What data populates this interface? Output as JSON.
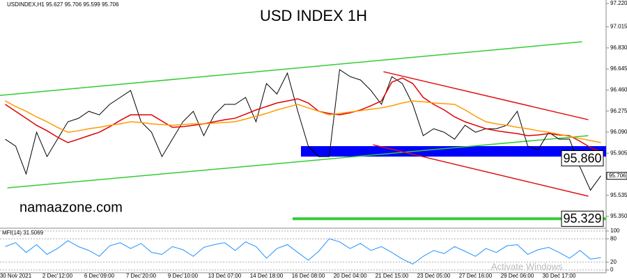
{
  "chart_data": [
    {
      "type": "line",
      "title": "USD INDEX 1H",
      "symbol_info": "USDINDEX,H1  95.627 95.706 95.599 95.706",
      "watermark": "namaazone.com",
      "ylim": [
        95.258,
        97.251
      ],
      "yticks": [
        {
          "value": 97.22,
          "label": "97.220"
        },
        97.015,
        {
          "value": 96.83,
          "label": "96.830"
        },
        96.645,
        {
          "value": 96.46,
          "label": "96.460"
        },
        96.275,
        {
          "value": 96.09,
          "label": "96.090"
        },
        95.905,
        95.535,
        {
          "value": 95.35,
          "label": "95.350"
        }
      ],
      "last_price": 95.706,
      "series": [
        {
          "color": "#000000",
          "values": [
            96.028,
            95.967,
            95.722,
            96.089,
            95.875,
            96.028,
            96.181,
            96.211,
            96.273,
            96.242,
            96.334,
            96.395,
            96.456,
            96.181,
            96.089,
            95.875,
            96.028,
            96.181,
            96.273,
            96.059,
            96.242,
            96.334,
            96.334,
            96.395,
            96.181,
            96.517,
            96.425,
            96.609,
            96.273,
            95.967,
            95.875,
            95.875,
            96.639,
            96.578,
            96.548,
            96.456,
            96.334,
            96.578,
            96.517,
            96.334,
            96.059,
            96.12,
            96.089,
            96.028,
            96.15,
            96.089,
            96.12,
            96.12,
            96.15,
            96.273,
            95.967,
            95.936,
            96.089,
            96.028,
            96.028,
            95.784,
            95.58,
            95.706
          ]
        },
        {
          "color": "#e00000",
          "values": [
            96.334,
            96.273,
            96.212,
            96.15,
            96.102,
            96.046,
            95.998,
            96.028,
            96.059,
            96.089,
            96.138,
            96.193,
            96.242,
            96.242,
            96.242,
            96.187,
            96.132,
            96.138,
            96.15,
            96.163,
            96.181,
            96.199,
            96.212,
            96.248,
            96.285,
            96.315,
            96.346,
            96.364,
            96.383,
            96.346,
            96.273,
            96.254,
            96.242,
            96.26,
            96.285,
            96.322,
            96.364,
            96.529,
            96.566,
            96.517,
            96.395,
            96.334,
            96.285,
            96.224,
            96.181,
            96.15,
            96.12,
            96.102,
            96.089,
            96.077,
            96.059,
            96.065,
            96.077,
            96.065,
            96.059,
            96.01,
            95.955,
            95.918
          ]
        },
        {
          "color": "#ff9900",
          "values": [
            96.364,
            96.315,
            96.273,
            96.224,
            96.181,
            96.132,
            96.089,
            96.102,
            96.12,
            96.132,
            96.15,
            96.163,
            96.181,
            96.175,
            96.163,
            96.157,
            96.15,
            96.157,
            96.163,
            96.163,
            96.169,
            96.175,
            96.181,
            96.205,
            96.23,
            96.254,
            96.285,
            96.309,
            96.334,
            96.303,
            96.273,
            96.242,
            96.254,
            96.267,
            96.279,
            96.291,
            96.303,
            96.322,
            96.346,
            96.364,
            96.358,
            96.346,
            96.34,
            96.334,
            96.285,
            96.23,
            96.181,
            96.163,
            96.15,
            96.132,
            96.12,
            96.102,
            96.089,
            96.071,
            96.053,
            96.034,
            96.016,
            95.998
          ]
        }
      ],
      "trendlines": [
        {
          "color": "#33cc33",
          "points": [
            [
              -0.5,
              96.413
            ],
            [
              55.2,
              96.884
            ]
          ]
        },
        {
          "color": "#33cc33",
          "points": [
            [
              0.2,
              95.6
            ],
            [
              55.8,
              96.059
            ]
          ]
        },
        {
          "color": "#e01010",
          "points": [
            [
              36.2,
              96.621
            ],
            [
              55.8,
              96.199
            ]
          ]
        },
        {
          "color": "#e01010",
          "points": [
            [
              35.2,
              95.979
            ],
            [
              55.8,
              95.527
            ]
          ]
        }
      ],
      "zone": {
        "color": "#0000ff",
        "x": [
          28.3,
          57.5
        ],
        "y": [
          95.875,
          95.967
        ]
      },
      "annotations": [
        {
          "value": 95.86,
          "label": "95.860"
        },
        {
          "value": 95.329,
          "color": "#33cc33",
          "x": [
            27.5,
            57.5
          ]
        }
      ]
    },
    {
      "type": "line",
      "title": "MFI(14) 31.5069",
      "os_watermark": "Activate Windows",
      "ylim": [
        0,
        100
      ],
      "yticks": [
        0,
        20,
        80,
        100
      ],
      "categories": [
        null,
        "30 Nov 2021",
        null,
        null,
        null,
        "2 Dec 12:00",
        null,
        null,
        null,
        "6 Dec 09:00",
        null,
        null,
        null,
        "7 Dec 20:00",
        null,
        null,
        null,
        "9 Dec 10:00",
        null,
        null,
        null,
        "13 Dec 07:00",
        null,
        null,
        null,
        "14 Dec 18:00",
        null,
        null,
        null,
        "16 Dec 08:00",
        null,
        null,
        null,
        "20 Dec 04:00",
        null,
        null,
        null,
        "21 Dec 15:00",
        null,
        null,
        null,
        "23 Dec 05:00",
        null,
        null,
        null,
        "27 Dec 16:00",
        null,
        null,
        null,
        "29 Dec 06:00",
        null,
        null,
        null,
        "30 Dec 17:00",
        null,
        null,
        null,
        null
      ],
      "series": [
        {
          "color": "#1e90ff",
          "values": [
            60,
            70,
            45,
            65,
            40,
            55,
            75,
            60,
            50,
            35,
            62,
            70,
            55,
            68,
            45,
            40,
            60,
            52,
            35,
            58,
            65,
            70,
            50,
            72,
            60,
            30,
            55,
            65,
            45,
            25,
            48,
            80,
            72,
            55,
            68,
            50,
            60,
            45,
            28,
            15,
            35,
            50,
            42,
            60,
            48,
            35,
            55,
            45,
            62,
            65,
            40,
            52,
            58,
            45,
            30,
            50,
            28,
            31.5069
          ]
        }
      ]
    }
  ]
}
